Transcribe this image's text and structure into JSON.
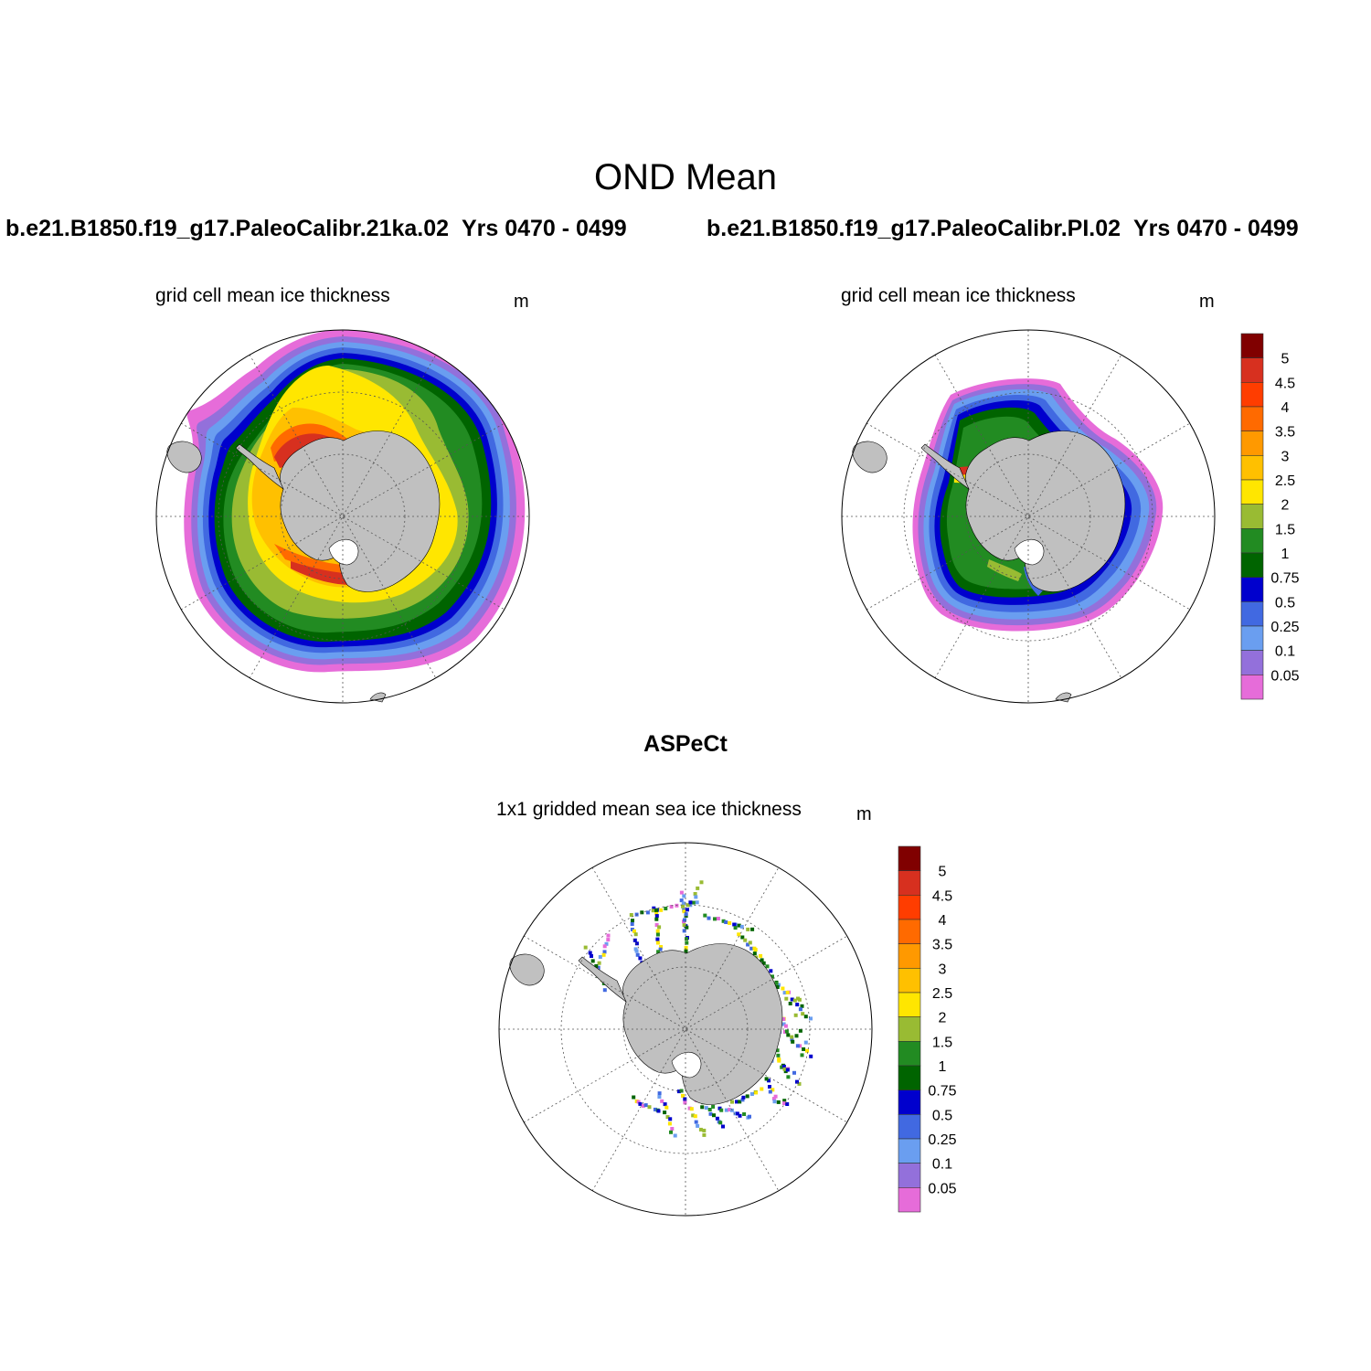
{
  "title": "OND Mean",
  "panels": [
    {
      "case": "b.e21.B1850.f19_g17.PaleoCalibr.21ka.02",
      "years": "Yrs 0470 - 0499",
      "variable": "grid cell mean ice thickness",
      "units": "m"
    },
    {
      "case": "b.e21.B1850.f19_g17.PaleoCalibr.PI.02",
      "years": "Yrs 0470 - 0499",
      "variable": "grid cell mean ice thickness",
      "units": "m"
    },
    {
      "case": "ASPeCt",
      "variable": "1x1 gridded mean sea ice thickness",
      "units": "m"
    }
  ],
  "colorbar": {
    "labels": [
      "5",
      "4.5",
      "4",
      "3.5",
      "3",
      "2.5",
      "2",
      "1.5",
      "1",
      "0.75",
      "0.5",
      "0.25",
      "0.1",
      "0.05"
    ],
    "colors": [
      "#800000",
      "#d7301f",
      "#ff3d00",
      "#ff6a00",
      "#ff9900",
      "#ffc000",
      "#ffe600",
      "#99bb33",
      "#228b22",
      "#006400",
      "#0000cd",
      "#4169e1",
      "#6a9ef0",
      "#9370db",
      "#e66cd9"
    ]
  },
  "map": {
    "projection": "south polar stereographic",
    "land_color": "#c0c0c0",
    "grid": "dotted lat/lon lines every 30 degrees"
  }
}
